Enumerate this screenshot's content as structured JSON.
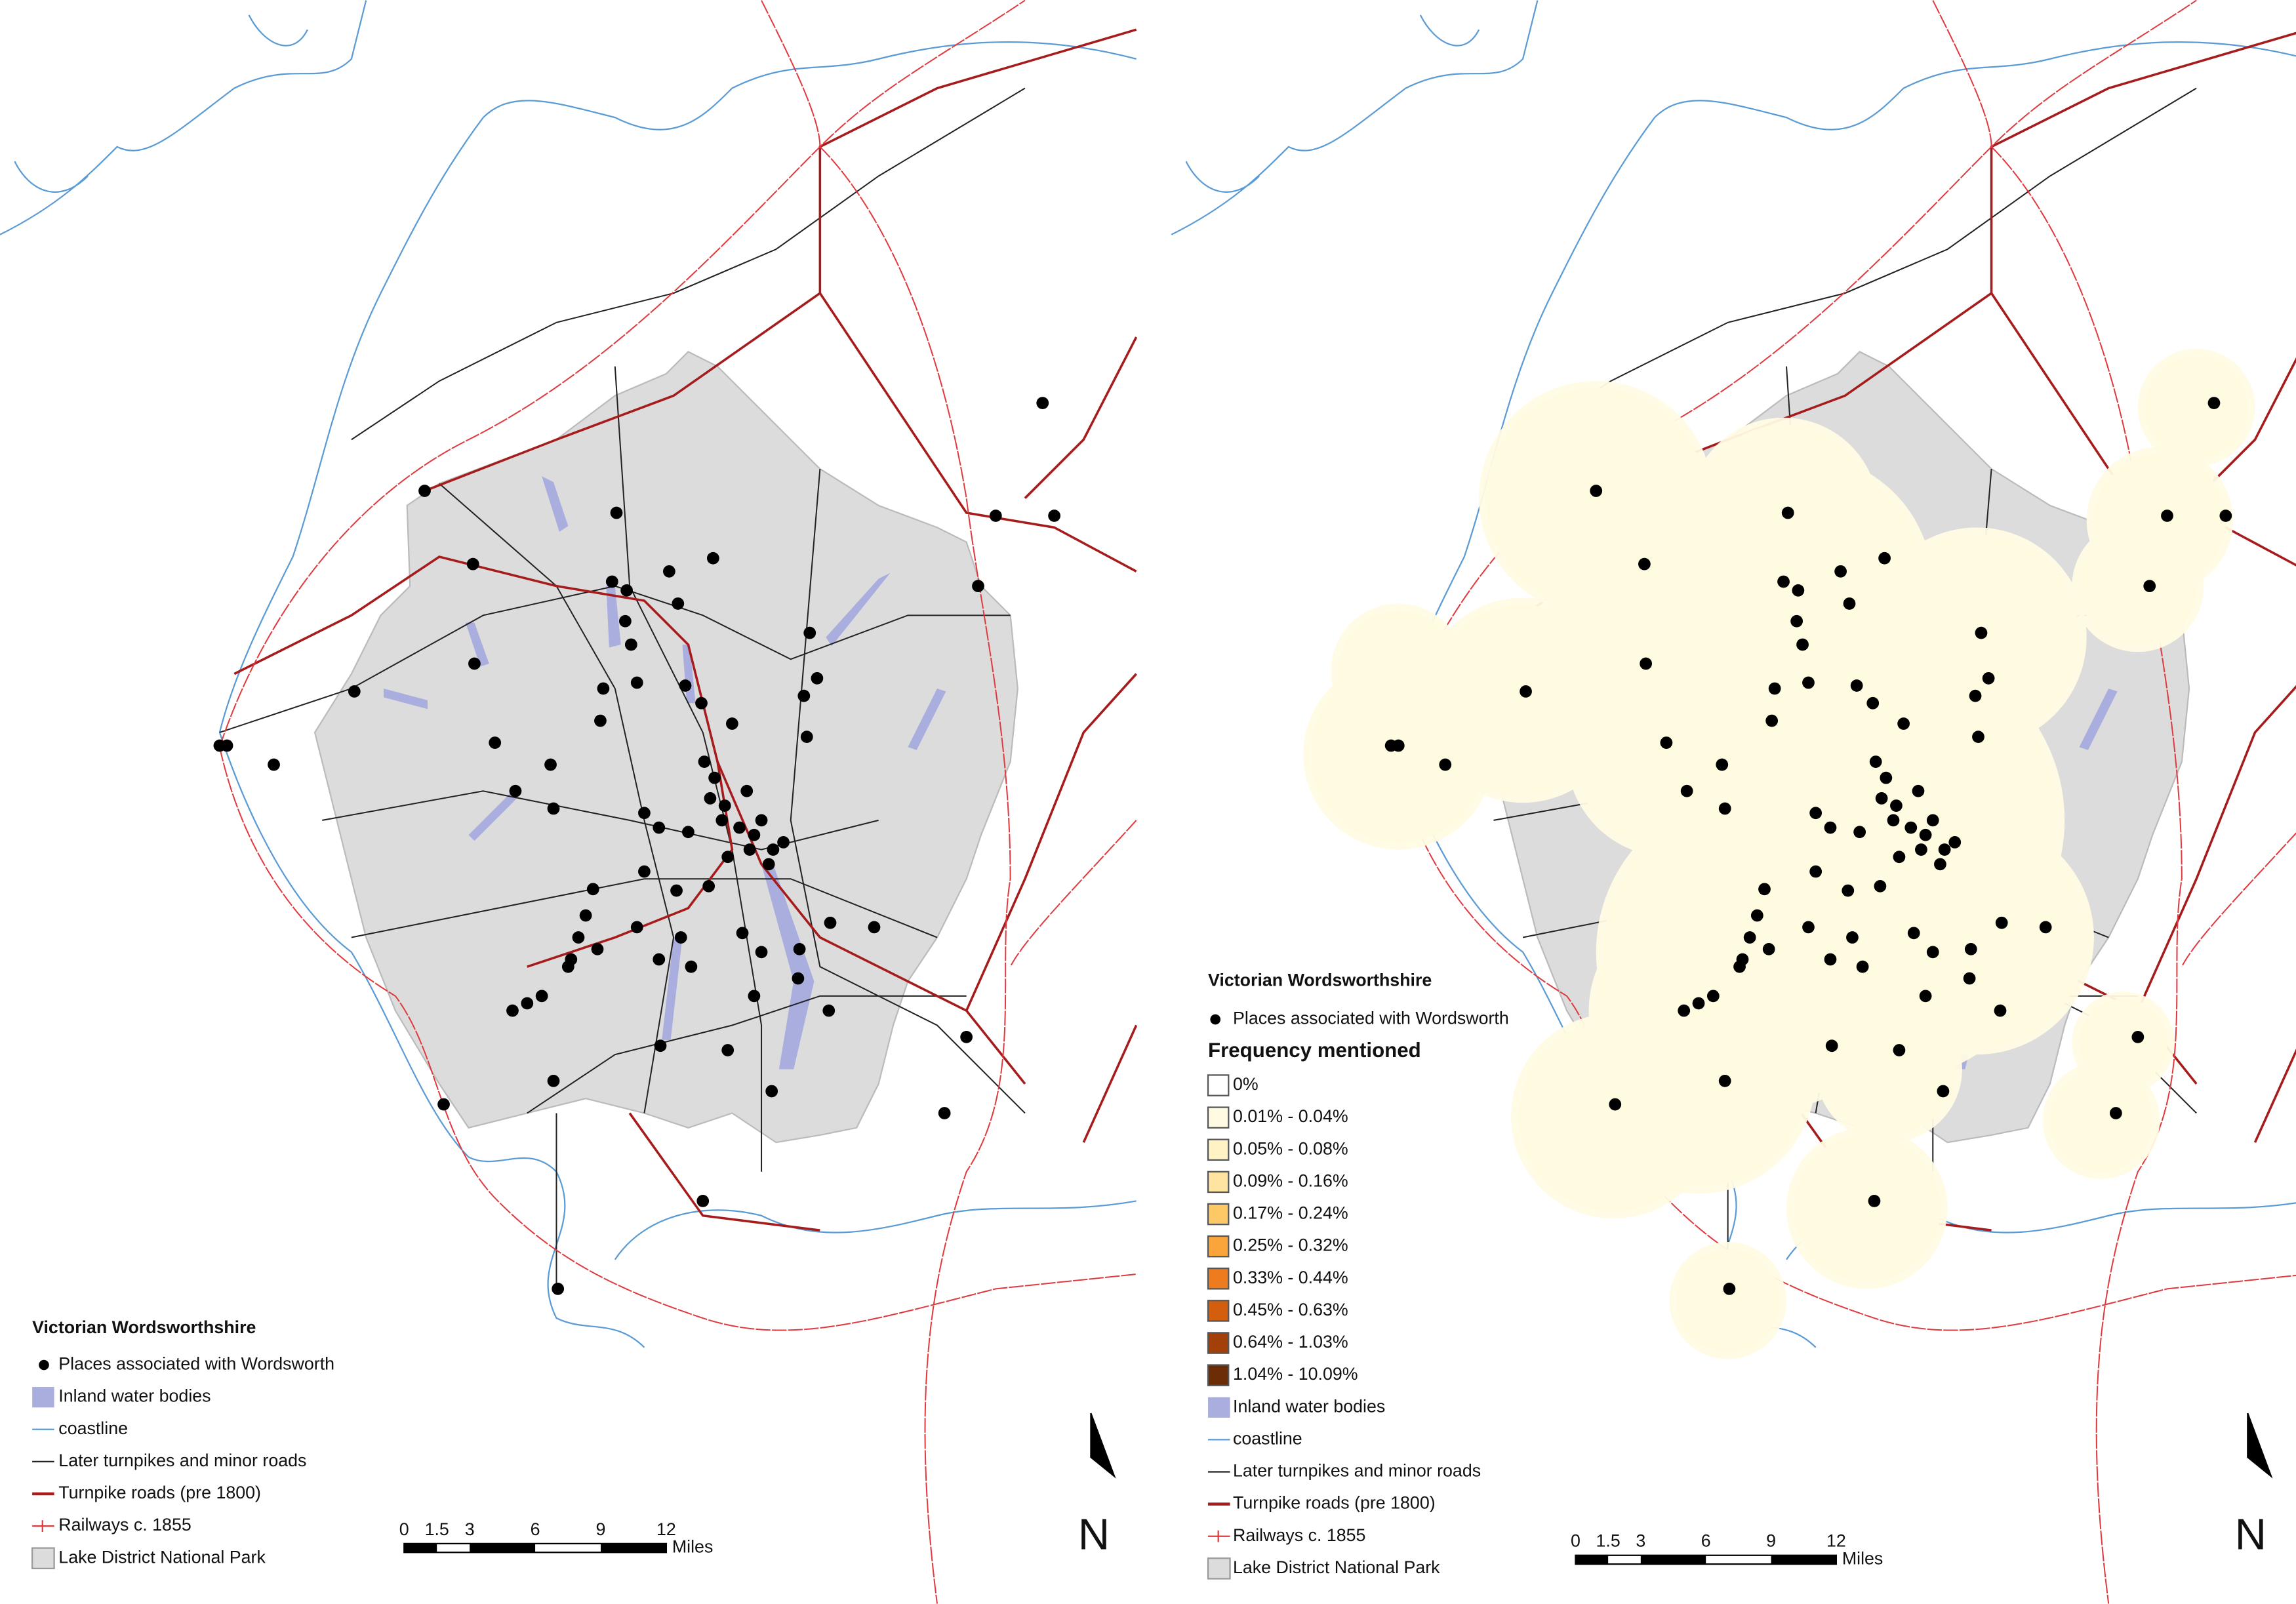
{
  "left_map": {
    "legend": {
      "title": "Victorian Wordsworthshire",
      "items": [
        "Places associated with Wordsworth",
        "Inland water bodies",
        "coastline",
        "Later turnpikes and minor roads",
        "Turnpike roads (pre 1800)",
        "Railways c. 1855",
        "Lake District National Park"
      ]
    },
    "scale_bar": {
      "ticks": [
        0,
        1.5,
        3,
        6,
        9,
        12
      ],
      "unit": "Miles"
    },
    "north_arrow": "N"
  },
  "right_map": {
    "legend": {
      "title": "Victorian Wordsworthshire",
      "places": "Places associated with Wordsworth",
      "frequency_title": "Frequency mentioned",
      "classes": [
        "0%",
        "0.01% - 0.04%",
        "0.05% - 0.08%",
        "0.09% - 0.16%",
        "0.17% - 0.24%",
        "0.25% - 0.32%",
        "0.33% - 0.44%",
        "0.45% - 0.63%",
        "0.64% - 1.03%",
        "1.04% - 10.09%"
      ],
      "class_colors": [
        "#ffffff",
        "#fffbe3",
        "#fff2c4",
        "#ffe3a0",
        "#fdc866",
        "#f9a53c",
        "#ee7b1d",
        "#d35f0e",
        "#a3400a",
        "#6b2c06"
      ],
      "items": [
        "Inland water bodies",
        "coastline",
        "Later turnpikes and minor roads",
        "Turnpike roads (pre 1800)",
        "Railways c. 1855",
        "Lake District National Park"
      ]
    },
    "scale_bar": {
      "ticks": [
        0,
        1.5,
        3,
        6,
        9,
        12
      ],
      "unit": "Miles"
    },
    "north_arrow": "N"
  }
}
